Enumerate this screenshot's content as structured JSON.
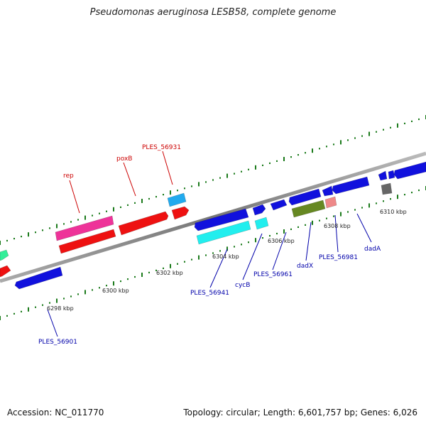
{
  "title": "Pseudomonas aeruginosa LESB58, complete genome",
  "footer": {
    "accession": "Accession: NC_011770",
    "summary": "Topology: circular; Length: 6,601,757 bp; Genes: 6,026"
  },
  "colors": {
    "backbone": "#888888",
    "tick": "#1a7a1a",
    "label_red": "#cc0000",
    "label_blue": "#0000aa"
  },
  "scale_labels": [
    {
      "id": "6298",
      "text": "6298 kbp"
    },
    {
      "id": "6300",
      "text": "6300 kbp"
    },
    {
      "id": "6302",
      "text": "6302 kbp"
    },
    {
      "id": "6304",
      "text": "6304 kbp"
    },
    {
      "id": "6306",
      "text": "6306 kbp"
    },
    {
      "id": "6308",
      "text": "6308 kbp"
    },
    {
      "id": "6310",
      "text": "6310 kbp"
    }
  ],
  "gene_labels": [
    {
      "id": "rep",
      "text": "rep",
      "color": "red"
    },
    {
      "id": "poxB",
      "text": "poxB",
      "color": "red"
    },
    {
      "id": "PLES_56931",
      "text": "PLES_56931",
      "color": "red"
    },
    {
      "id": "PLES_56901",
      "text": "PLES_56901",
      "color": "blue"
    },
    {
      "id": "PLES_56941",
      "text": "PLES_56941",
      "color": "blue"
    },
    {
      "id": "cycB",
      "text": "cycB",
      "color": "blue"
    },
    {
      "id": "PLES_56961",
      "text": "PLES_56961",
      "color": "blue"
    },
    {
      "id": "dadX",
      "text": "dadX",
      "color": "blue"
    },
    {
      "id": "PLES_56981",
      "text": "PLES_56981",
      "color": "blue"
    },
    {
      "id": "dadA",
      "text": "dadA",
      "color": "blue"
    }
  ],
  "features": [
    {
      "id": "feat-green-left",
      "color": "#33ee99"
    },
    {
      "id": "feat-red-left",
      "color": "#ee1111"
    },
    {
      "id": "feat-rep",
      "color": "#ee3399"
    },
    {
      "id": "feat-red-rep",
      "color": "#ee1111"
    },
    {
      "id": "feat-poxB",
      "color": "#ee1111"
    },
    {
      "id": "feat-PLES_56931-top",
      "color": "#22aaee"
    },
    {
      "id": "feat-PLES_56931",
      "color": "#ee1111"
    },
    {
      "id": "feat-PLES_56901",
      "color": "#1111dd"
    },
    {
      "id": "feat-blue-1",
      "color": "#1111dd"
    },
    {
      "id": "feat-PLES_56941",
      "color": "#22eeee"
    },
    {
      "id": "feat-blue-2",
      "color": "#1111dd"
    },
    {
      "id": "feat-cycB",
      "color": "#22eeee"
    },
    {
      "id": "feat-blue-3",
      "color": "#1111dd"
    },
    {
      "id": "feat-blue-4",
      "color": "#1111dd"
    },
    {
      "id": "feat-dadX",
      "color": "#668822"
    },
    {
      "id": "feat-blue-5",
      "color": "#1111dd"
    },
    {
      "id": "feat-blue-6",
      "color": "#1111dd"
    },
    {
      "id": "feat-PLES_56981",
      "color": "#ee8888"
    },
    {
      "id": "feat-blue-7",
      "color": "#1111dd"
    },
    {
      "id": "feat-blue-8",
      "color": "#1111dd"
    },
    {
      "id": "feat-blue-9",
      "color": "#1111dd"
    },
    {
      "id": "feat-grey",
      "color": "#666666"
    }
  ]
}
